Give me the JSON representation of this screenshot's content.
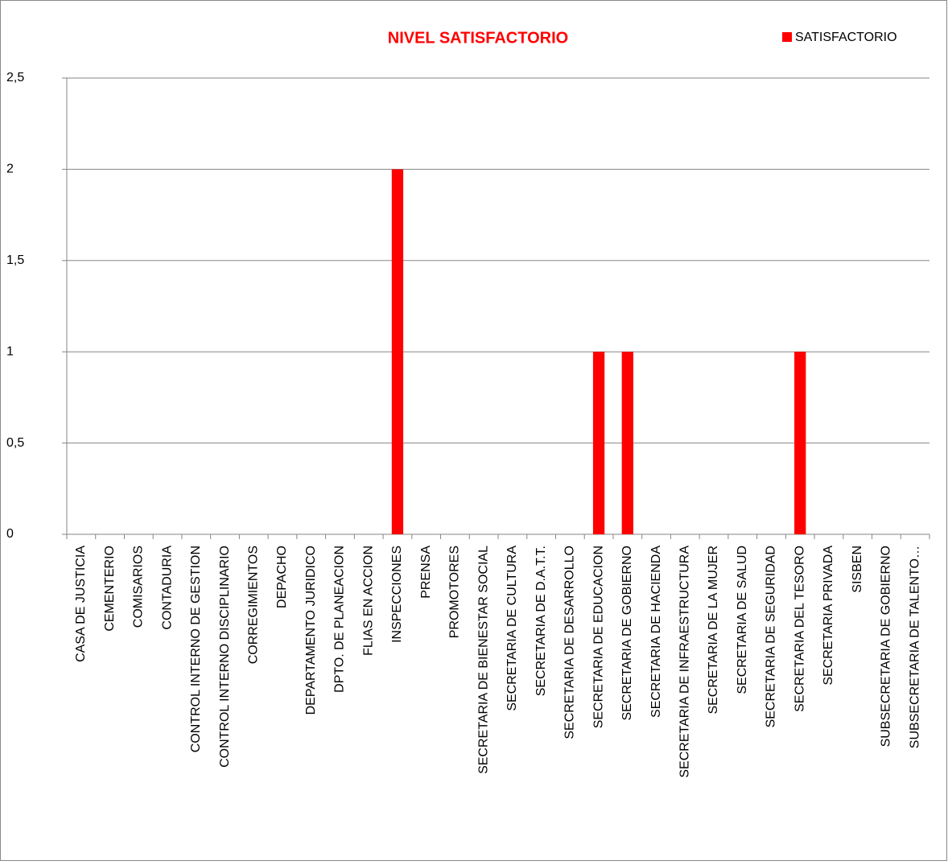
{
  "chart_data": {
    "type": "bar",
    "title": "NIVEL SATISFACTORIO",
    "categories": [
      "CASA DE JUSTICIA",
      "CEMENTERIO",
      "COMISARIOS",
      "CONTADURIA",
      "CONTROL INTERNO DE GESTION",
      "CONTROL INTERNO DISCIPLINARIO",
      "CORREGIMIENTOS",
      "DEPACHO",
      "DEPARTAMENTO JURIDICO",
      "DPTO. DE PLANEACION",
      "FLIAS EN ACCION",
      "INSPECCIONES",
      "PRENSA",
      "PROMOTORES",
      "SECRETARIA DE BIENESTAR SOCIAL",
      "SECRETARIA DE CULTURA",
      "SECRETARIA DE D.A.T.T.",
      "SECRETARIA DE DESARROLLO",
      "SECRETARIA DE EDUCACION",
      "SECRETARIA DE GOBIERNO",
      "SECRETARIA DE HACIENDA",
      "SECRETARIA DE INFRAESTRUCTURA",
      "SECRETARIA DE LA MUJER",
      "SECRETARIA DE SALUD",
      "SECRETARIA DE SEGURIDAD",
      "SECRETARIA DEL TESORO",
      "SECRETARIA PRIVADA",
      "SISBEN",
      "SUBSECRETARIA DE GOBIERNO",
      "SUBSECRETARIA DE TALENTO…"
    ],
    "series": [
      {
        "name": "SATISFACTORIO",
        "color": "#ff0000",
        "values": [
          0,
          0,
          0,
          0,
          0,
          0,
          0,
          0,
          0,
          0,
          0,
          2,
          0,
          0,
          0,
          0,
          0,
          0,
          1,
          1,
          0,
          0,
          0,
          0,
          0,
          1,
          0,
          0,
          0,
          0
        ]
      }
    ],
    "ylim": [
      0,
      2.5
    ],
    "yticks": [
      0,
      {
        "value": 0.5,
        "label": "0,5"
      },
      1,
      {
        "value": 1.5,
        "label": "1,5"
      },
      2,
      {
        "value": 2.5,
        "label": "2,5"
      }
    ],
    "grid": true,
    "legend": "top-right"
  }
}
